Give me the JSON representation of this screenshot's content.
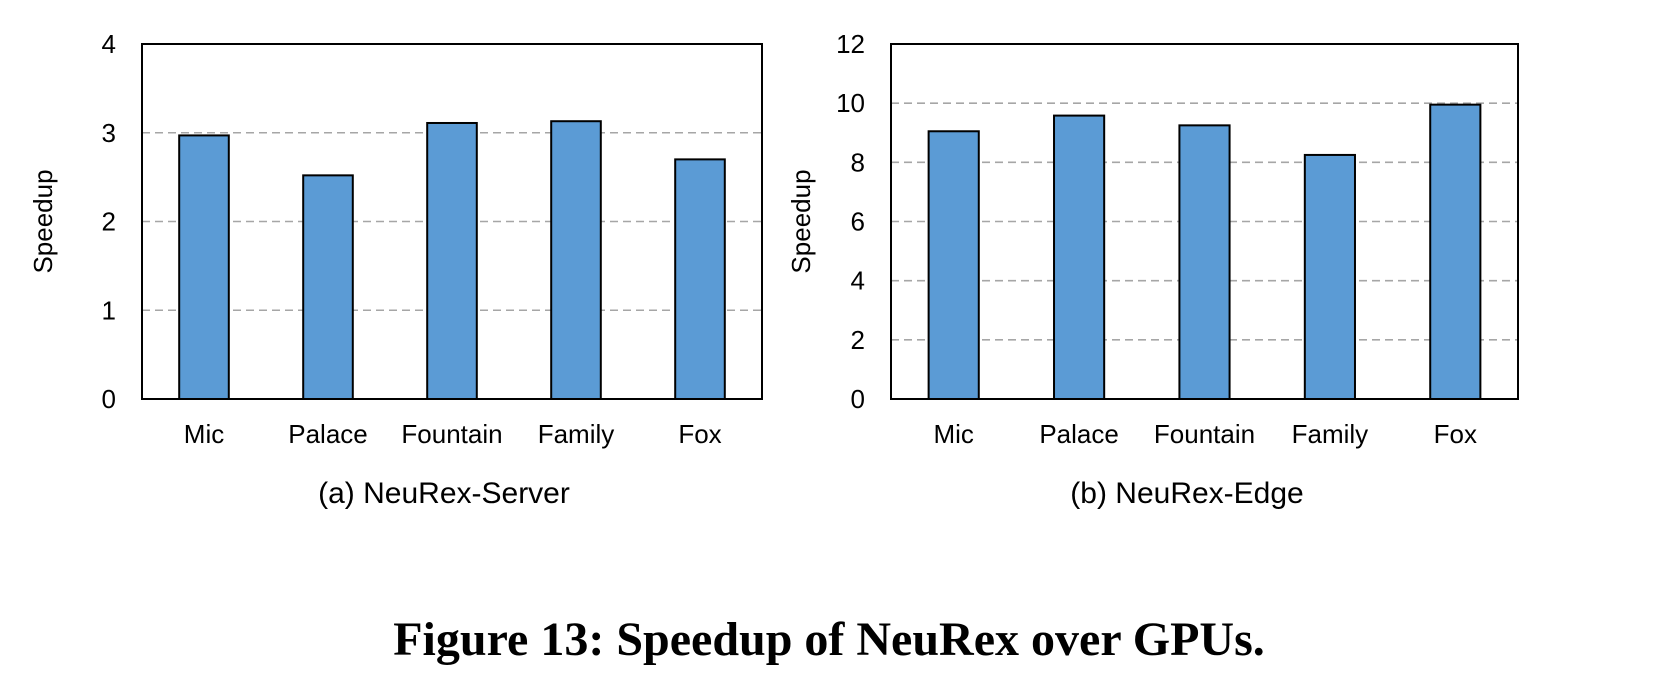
{
  "figure_caption": "Figure 13: Speedup of NeuRex over GPUs.",
  "colors": {
    "bar": "#5B9BD5",
    "bar_stroke": "#000000",
    "grid": "#A6A6A6"
  },
  "chart_data": [
    {
      "type": "bar",
      "subtitle": "(a) NeuRex-Server",
      "ylabel": "Speedup",
      "categories": [
        "Mic",
        "Palace",
        "Fountain",
        "Family",
        "Fox"
      ],
      "values": [
        2.97,
        2.52,
        3.11,
        3.13,
        2.7
      ],
      "ylim": [
        0,
        4
      ],
      "yticks": [
        0,
        1,
        2,
        3,
        4
      ],
      "ytick_labels": [
        "0",
        "1",
        "2",
        "3",
        "4"
      ],
      "grid": true,
      "legend": "none"
    },
    {
      "type": "bar",
      "subtitle": "(b) NeuRex-Edge",
      "ylabel": "Speedup",
      "categories": [
        "Mic",
        "Palace",
        "Fountain",
        "Family",
        "Fox"
      ],
      "values": [
        9.05,
        9.58,
        9.25,
        8.25,
        9.95
      ],
      "ylim": [
        0,
        12
      ],
      "yticks": [
        0,
        2,
        4,
        6,
        8,
        10,
        12
      ],
      "ytick_labels": [
        "0",
        "2",
        "4",
        "6",
        "8",
        "10",
        "12"
      ],
      "grid": true,
      "legend": "none"
    }
  ]
}
